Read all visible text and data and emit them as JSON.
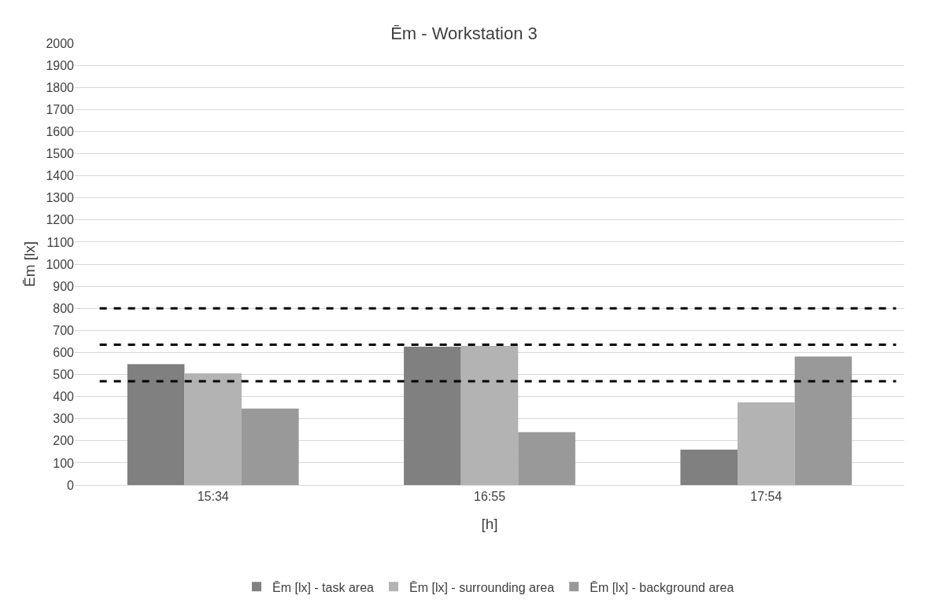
{
  "chart_data": {
    "type": "bar",
    "title": "Ēm - Workstation 3",
    "xlabel": "[h]",
    "ylabel": "Ēm [lx]",
    "categories": [
      "15:34",
      "16:55",
      "17:54"
    ],
    "series": [
      {
        "name": "Ēm [lx] - task area",
        "color": "#808080",
        "values": [
          547,
          626,
          160
        ]
      },
      {
        "name": "Ēm [lx] - surrounding area",
        "color": "#b3b3b3",
        "values": [
          505,
          630,
          375
        ]
      },
      {
        "name": "Ēm [lx] - background area",
        "color": "#999999",
        "values": [
          346,
          239,
          582
        ]
      }
    ],
    "ylim": [
      0,
      2000
    ],
    "yticks": [
      0,
      100,
      200,
      300,
      400,
      500,
      600,
      700,
      800,
      900,
      1000,
      1100,
      1200,
      1300,
      1400,
      1500,
      1600,
      1700,
      1800,
      1900,
      2000
    ],
    "ref_lines": [
      {
        "axis": "y",
        "value": 800,
        "color": "#000000",
        "line_style": "dashed"
      },
      {
        "axis": "y",
        "value": 635,
        "color": "#000000",
        "line_style": "dashed"
      },
      {
        "axis": "y",
        "value": 470,
        "color": "#000000",
        "line_style": "dashed"
      }
    ],
    "grid": "y",
    "legend": "bottom"
  }
}
